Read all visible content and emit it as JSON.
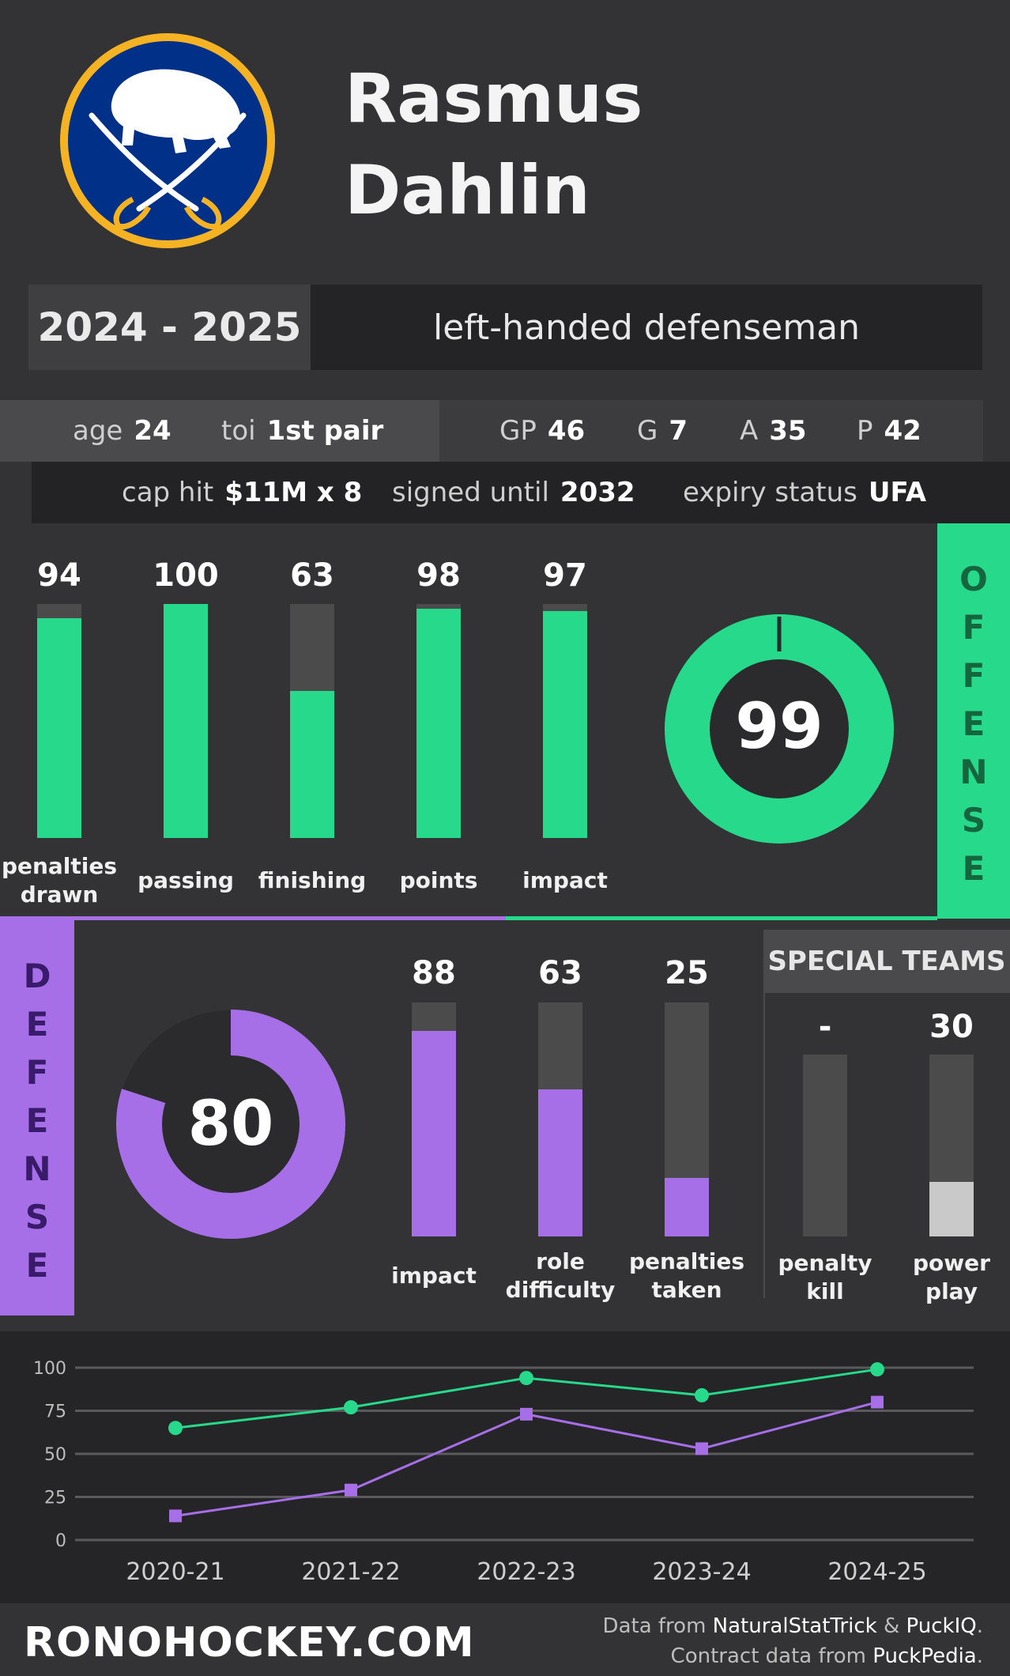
{
  "colors": {
    "offense": "#27d98b",
    "defense": "#a66fe8",
    "special": "#c9c9c9",
    "bar_track": "#4b4b4b"
  },
  "logo": {
    "icon": "sabres-logo-icon"
  },
  "player": {
    "first_name": "Rasmus",
    "last_name": "Dahlin"
  },
  "season": "2024 - 2025",
  "role": "left-handed defenseman",
  "info": {
    "age_label": "age",
    "age": "24",
    "toi_label": "toi",
    "toi": "1st pair",
    "gp_label": "GP",
    "gp": "46",
    "g_label": "G",
    "g": "7",
    "a_label": "A",
    "a": "35",
    "p_label": "P",
    "p": "42",
    "cap_label": "cap hit",
    "cap": "$11M x 8",
    "signed_label": "signed until",
    "signed": "2032",
    "expiry_label": "expiry status",
    "expiry": "UFA"
  },
  "offense": {
    "side_label": [
      "O",
      "F",
      "F",
      "E",
      "N",
      "S",
      "E"
    ],
    "overall": 99,
    "bars": [
      {
        "label_line1": "penalties",
        "label_line2": "drawn",
        "value": 94
      },
      {
        "label_line1": "passing",
        "label_line2": "",
        "value": 100
      },
      {
        "label_line1": "finishing",
        "label_line2": "",
        "value": 63
      },
      {
        "label_line1": "points",
        "label_line2": "",
        "value": 98
      },
      {
        "label_line1": "impact",
        "label_line2": "",
        "value": 97
      }
    ]
  },
  "defense": {
    "side_label": [
      "D",
      "E",
      "F",
      "E",
      "N",
      "S",
      "E"
    ],
    "overall": 80,
    "bars": [
      {
        "label_line1": "impact",
        "label_line2": "",
        "value": 88
      },
      {
        "label_line1": "role",
        "label_line2": "difficulty",
        "value": 63
      },
      {
        "label_line1": "penalties",
        "label_line2": "taken",
        "value": 25
      }
    ]
  },
  "special_teams": {
    "title": "SPECIAL TEAMS",
    "bars": [
      {
        "label_line1": "penalty",
        "label_line2": "kill",
        "value_text": "-",
        "value": 0
      },
      {
        "label_line1": "power",
        "label_line2": "play",
        "value_text": "30",
        "value": 30
      }
    ]
  },
  "chart_data": {
    "type": "line",
    "categories": [
      "2020-21",
      "2021-22",
      "2022-23",
      "2023-24",
      "2024-25"
    ],
    "yticks": [
      "100",
      "75",
      "50",
      "25",
      "0"
    ],
    "ylim": [
      0,
      100
    ],
    "grid": true,
    "series": [
      {
        "values": [
          65,
          77,
          94,
          84,
          99
        ],
        "color": "#27d98b",
        "marker": "circle"
      },
      {
        "values": [
          14,
          29,
          73,
          53,
          80
        ],
        "color": "#a66fe8",
        "marker": "square"
      }
    ]
  },
  "footer": {
    "site": "RONOHOCKEY.COM",
    "credit1_prefix": "Data from ",
    "credit1_src1": "NaturalStatTrick",
    "credit1_amp": " & ",
    "credit1_src2": "PuckIQ",
    "credit1_end": ".",
    "credit2_prefix": "Contract data from ",
    "credit2_src": "PuckPedia",
    "credit2_end": "."
  }
}
